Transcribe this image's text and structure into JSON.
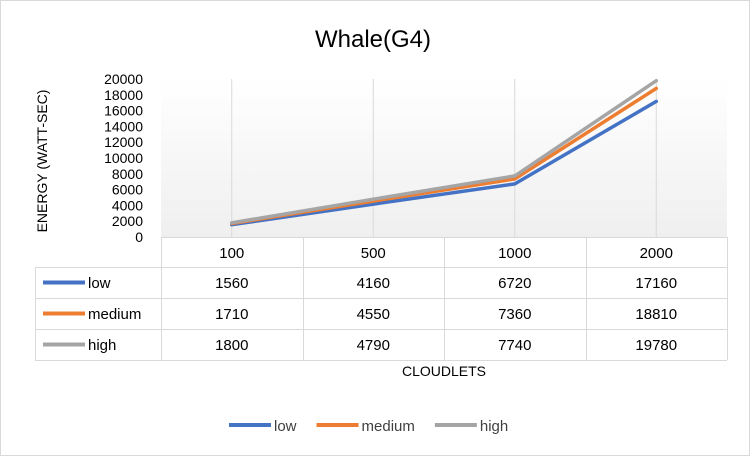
{
  "chart_data": {
    "type": "line",
    "title": "Whale(G4)",
    "xlabel": "CLOUDLETS",
    "ylabel": "ENERGY (WATT-SEC)",
    "categories": [
      "100",
      "500",
      "1000",
      "2000"
    ],
    "ylim": [
      0,
      20000
    ],
    "yticks": [
      "0",
      "2000",
      "4000",
      "6000",
      "8000",
      "10000",
      "12000",
      "14000",
      "16000",
      "18000",
      "20000"
    ],
    "grid": false,
    "legend": "bottom",
    "data_table": true,
    "series": [
      {
        "name": "low",
        "color": "#4472c4",
        "values": [
          1560,
          4160,
          6720,
          17160
        ]
      },
      {
        "name": "medium",
        "color": "#ed7d31",
        "values": [
          1710,
          4550,
          7360,
          18810
        ]
      },
      {
        "name": "high",
        "color": "#a5a5a5",
        "values": [
          1800,
          4790,
          7740,
          19780
        ]
      }
    ]
  }
}
